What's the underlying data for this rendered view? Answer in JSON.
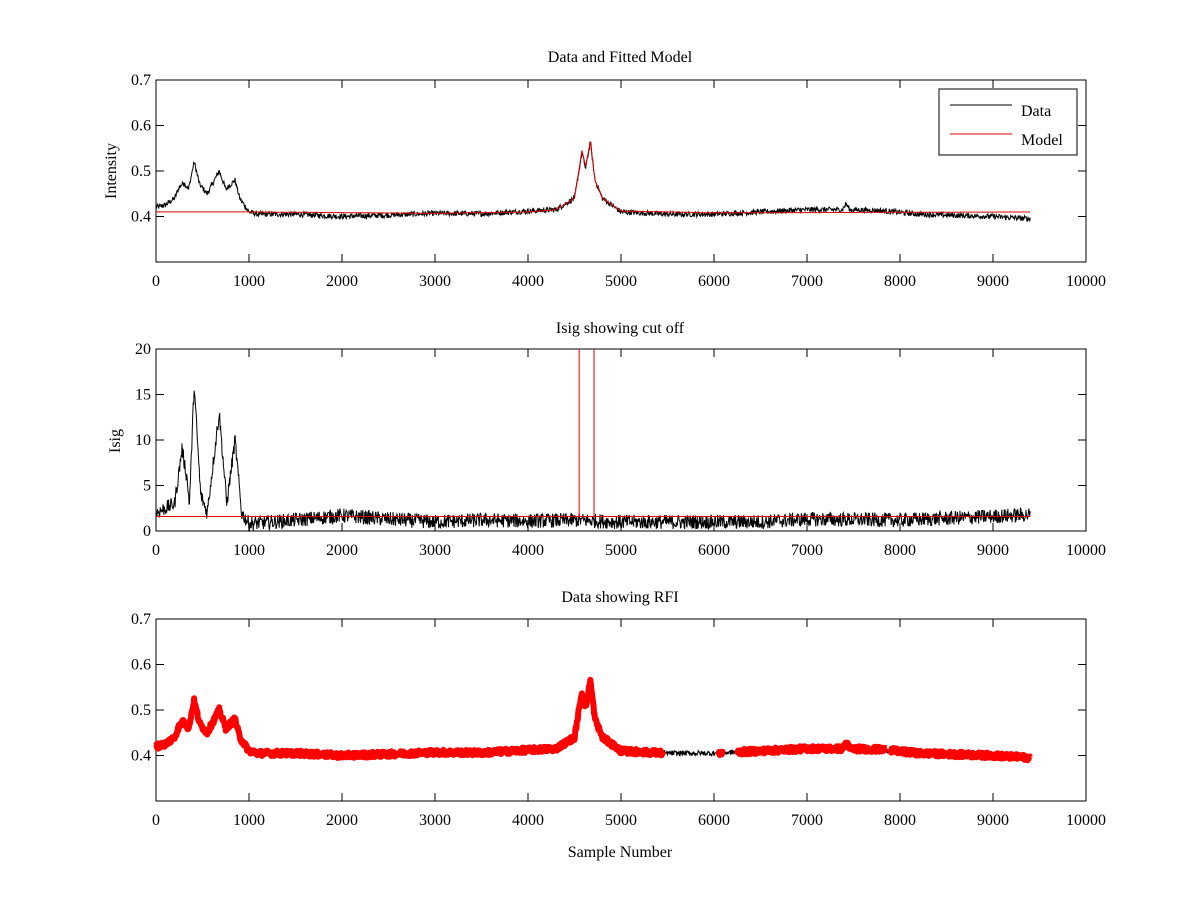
{
  "figure": {
    "background": "#ffffff"
  },
  "chart_data": [
    {
      "id": "data-model",
      "type": "line",
      "title": "Data and Fitted Model",
      "xlabel": "",
      "ylabel": "Intensity",
      "xlim": [
        0,
        10000
      ],
      "ylim": [
        0.3,
        0.7
      ],
      "xticks": [
        0,
        1000,
        2000,
        3000,
        4000,
        5000,
        6000,
        7000,
        8000,
        9000,
        10000
      ],
      "yticks": [
        0.4,
        0.5,
        0.6,
        0.7
      ],
      "grid": false,
      "legend": {
        "position": "top-right",
        "entries": [
          "Data",
          "Model"
        ]
      },
      "series": [
        {
          "name": "Data",
          "color": "#000000",
          "noise": 0.006,
          "x_range": [
            0,
            9400
          ],
          "profile": [
            [
              0,
              0.42
            ],
            [
              100,
              0.425
            ],
            [
              200,
              0.44
            ],
            [
              250,
              0.465
            ],
            [
              300,
              0.475
            ],
            [
              350,
              0.46
            ],
            [
              410,
              0.52
            ],
            [
              470,
              0.47
            ],
            [
              550,
              0.45
            ],
            [
              680,
              0.5
            ],
            [
              750,
              0.46
            ],
            [
              850,
              0.48
            ],
            [
              900,
              0.44
            ],
            [
              1000,
              0.41
            ],
            [
              1100,
              0.405
            ],
            [
              1500,
              0.405
            ],
            [
              2000,
              0.4
            ],
            [
              2500,
              0.403
            ],
            [
              3000,
              0.407
            ],
            [
              3500,
              0.406
            ],
            [
              4000,
              0.412
            ],
            [
              4300,
              0.415
            ],
            [
              4500,
              0.44
            ],
            [
              4580,
              0.54
            ],
            [
              4620,
              0.505
            ],
            [
              4670,
              0.565
            ],
            [
              4720,
              0.48
            ],
            [
              4800,
              0.44
            ],
            [
              5000,
              0.41
            ],
            [
              5500,
              0.405
            ],
            [
              6000,
              0.405
            ],
            [
              6500,
              0.41
            ],
            [
              7000,
              0.415
            ],
            [
              7380,
              0.415
            ],
            [
              7420,
              0.428
            ],
            [
              7460,
              0.415
            ],
            [
              7800,
              0.413
            ],
            [
              8200,
              0.405
            ],
            [
              9000,
              0.4
            ],
            [
              9400,
              0.395
            ]
          ]
        },
        {
          "name": "Model",
          "color": "#e00000",
          "noise": 0,
          "x_range": [
            0,
            9400
          ],
          "profile": [
            [
              0,
              0.41
            ],
            [
              1000,
              0.41
            ],
            [
              3000,
              0.407
            ],
            [
              4000,
              0.41
            ],
            [
              4300,
              0.415
            ],
            [
              4500,
              0.44
            ],
            [
              4580,
              0.545
            ],
            [
              4620,
              0.51
            ],
            [
              4670,
              0.565
            ],
            [
              4720,
              0.48
            ],
            [
              4800,
              0.44
            ],
            [
              5000,
              0.412
            ],
            [
              6000,
              0.408
            ],
            [
              9400,
              0.41
            ]
          ]
        }
      ]
    },
    {
      "id": "isig",
      "type": "line",
      "title": "Isig showing cut off",
      "xlabel": "",
      "ylabel": "Isig",
      "xlim": [
        0,
        10000
      ],
      "ylim": [
        0,
        20
      ],
      "xticks": [
        0,
        1000,
        2000,
        3000,
        4000,
        5000,
        6000,
        7000,
        8000,
        9000,
        10000
      ],
      "yticks": [
        0,
        5,
        10,
        15,
        20
      ],
      "grid": false,
      "cutoff": {
        "value": 1.6,
        "color": "#e00000",
        "x_range": [
          0,
          9400
        ]
      },
      "excluded_band": {
        "x": [
          4550,
          4710
        ],
        "color": "#e00000"
      },
      "series": [
        {
          "color": "#000000",
          "noise": 0.8,
          "x_range": [
            0,
            9400
          ],
          "profile": [
            [
              0,
              2
            ],
            [
              100,
              2.5
            ],
            [
              200,
              3
            ],
            [
              280,
              9
            ],
            [
              330,
              6
            ],
            [
              360,
              3
            ],
            [
              410,
              16
            ],
            [
              480,
              4
            ],
            [
              550,
              2
            ],
            [
              680,
              13
            ],
            [
              760,
              3
            ],
            [
              850,
              10
            ],
            [
              920,
              2
            ],
            [
              1000,
              0.8
            ],
            [
              1500,
              1.2
            ],
            [
              2000,
              1.7
            ],
            [
              2500,
              1.3
            ],
            [
              3000,
              1
            ],
            [
              3500,
              1.2
            ],
            [
              4000,
              1.1
            ],
            [
              4500,
              1.2
            ],
            [
              5000,
              1
            ],
            [
              6000,
              1
            ],
            [
              6500,
              1
            ],
            [
              7000,
              1.3
            ],
            [
              8000,
              1.2
            ],
            [
              9000,
              1.6
            ],
            [
              9400,
              1.8
            ]
          ]
        }
      ]
    },
    {
      "id": "rfi",
      "type": "line",
      "title": "Data showing RFI",
      "xlabel": "Sample Number",
      "ylabel": "",
      "xlim": [
        0,
        10000
      ],
      "ylim": [
        0.3,
        0.7
      ],
      "xticks": [
        0,
        1000,
        2000,
        3000,
        4000,
        5000,
        6000,
        7000,
        8000,
        9000,
        10000
      ],
      "yticks": [
        0.4,
        0.5,
        0.6,
        0.7
      ],
      "grid": false,
      "rfi_color": "#ff0000",
      "rfi_ranges": [
        [
          0,
          5450
        ],
        [
          6050,
          6100
        ],
        [
          6250,
          7850
        ],
        [
          7900,
          9400
        ]
      ],
      "series": [
        {
          "color": "#000000",
          "noise": 0.006,
          "x_range": [
            0,
            9400
          ],
          "profile": [
            [
              0,
              0.42
            ],
            [
              100,
              0.425
            ],
            [
              200,
              0.44
            ],
            [
              250,
              0.465
            ],
            [
              300,
              0.475
            ],
            [
              350,
              0.46
            ],
            [
              410,
              0.52
            ],
            [
              470,
              0.47
            ],
            [
              550,
              0.45
            ],
            [
              680,
              0.5
            ],
            [
              750,
              0.46
            ],
            [
              850,
              0.48
            ],
            [
              900,
              0.44
            ],
            [
              1000,
              0.41
            ],
            [
              1100,
              0.405
            ],
            [
              1500,
              0.405
            ],
            [
              2000,
              0.4
            ],
            [
              2500,
              0.403
            ],
            [
              3000,
              0.407
            ],
            [
              3500,
              0.406
            ],
            [
              4000,
              0.412
            ],
            [
              4300,
              0.415
            ],
            [
              4500,
              0.44
            ],
            [
              4580,
              0.54
            ],
            [
              4620,
              0.505
            ],
            [
              4670,
              0.565
            ],
            [
              4720,
              0.48
            ],
            [
              4800,
              0.44
            ],
            [
              5000,
              0.41
            ],
            [
              5500,
              0.405
            ],
            [
              6000,
              0.405
            ],
            [
              6500,
              0.41
            ],
            [
              7000,
              0.415
            ],
            [
              7380,
              0.415
            ],
            [
              7420,
              0.428
            ],
            [
              7460,
              0.415
            ],
            [
              7800,
              0.413
            ],
            [
              8200,
              0.405
            ],
            [
              9000,
              0.4
            ],
            [
              9400,
              0.395
            ]
          ]
        }
      ]
    }
  ]
}
